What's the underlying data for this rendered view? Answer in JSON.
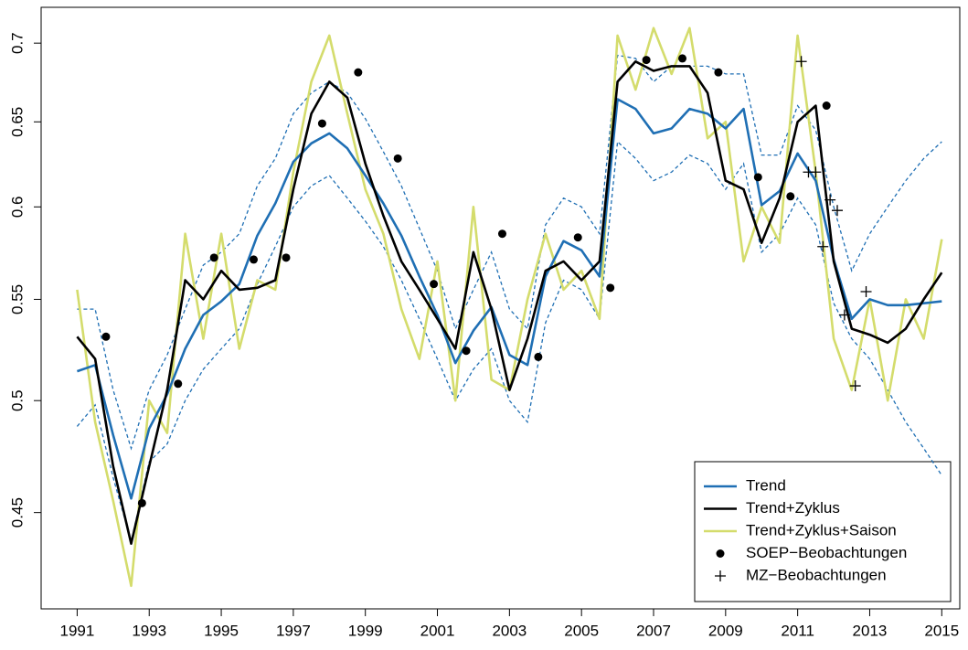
{
  "chart_data": {
    "type": "line",
    "log_scale": true,
    "legend": "bottom-right",
    "xlim": [
      1990.0,
      2015.5
    ],
    "xticks": [
      1991,
      1993,
      1995,
      1997,
      1999,
      2001,
      2003,
      2005,
      2007,
      2009,
      2011,
      2013,
      2015
    ],
    "ylim": [
      0.411,
      0.724
    ],
    "yticks": [
      0.45,
      0.5,
      0.55,
      0.6,
      0.65,
      0.7
    ],
    "x": [
      1991,
      1991.5,
      1992,
      1992.5,
      1993,
      1993.5,
      1994,
      1994.5,
      1995,
      1995.5,
      1996,
      1996.5,
      1997,
      1997.5,
      1998,
      1998.5,
      1999,
      1999.5,
      2000,
      2000.5,
      2001,
      2001.5,
      2002,
      2002.5,
      2003,
      2003.5,
      2004,
      2004.5,
      2005,
      2005.5,
      2006,
      2006.5,
      2007,
      2007.5,
      2008,
      2008.5,
      2009,
      2009.5,
      2010,
      2010.5,
      2011,
      2011.5,
      2012,
      2012.5,
      2013,
      2013.5,
      2014,
      2014.5,
      2015
    ],
    "band": {
      "color": "#1f6fb4",
      "upper": [
        0.545,
        0.545,
        0.505,
        0.478,
        0.505,
        0.522,
        0.545,
        0.568,
        0.575,
        0.585,
        0.612,
        0.628,
        0.655,
        0.668,
        0.675,
        0.668,
        0.652,
        0.632,
        0.612,
        0.588,
        0.565,
        0.535,
        0.555,
        0.575,
        0.545,
        0.535,
        0.59,
        0.605,
        0.6,
        0.585,
        0.692,
        0.69,
        0.675,
        0.685,
        0.685,
        0.685,
        0.68,
        0.68,
        0.63,
        0.63,
        0.66,
        0.645,
        0.6,
        0.565,
        0.585,
        0.6,
        0.615,
        0.628,
        0.638
      ],
      "lower": [
        0.488,
        0.498,
        0.465,
        0.438,
        0.472,
        0.48,
        0.5,
        0.515,
        0.525,
        0.535,
        0.558,
        0.578,
        0.6,
        0.612,
        0.618,
        0.605,
        0.592,
        0.578,
        0.56,
        0.54,
        0.52,
        0.5,
        0.515,
        0.525,
        0.5,
        0.49,
        0.538,
        0.56,
        0.555,
        0.54,
        0.638,
        0.628,
        0.615,
        0.62,
        0.63,
        0.625,
        0.61,
        0.625,
        0.575,
        0.585,
        0.605,
        0.59,
        0.548,
        0.53,
        0.52,
        0.505,
        0.49,
        0.478,
        0.466
      ]
    },
    "series": [
      {
        "name": "Trend",
        "color": "#1f6fb4",
        "marker": "line",
        "values": [
          0.514,
          0.517,
          0.484,
          0.456,
          0.487,
          0.503,
          0.525,
          0.542,
          0.549,
          0.558,
          0.584,
          0.602,
          0.626,
          0.637,
          0.643,
          0.634,
          0.618,
          0.602,
          0.584,
          0.562,
          0.542,
          0.518,
          0.534,
          0.546,
          0.522,
          0.517,
          0.562,
          0.581,
          0.576,
          0.562,
          0.664,
          0.658,
          0.643,
          0.646,
          0.658,
          0.655,
          0.646,
          0.658,
          0.601,
          0.609,
          0.631,
          0.615,
          0.571,
          0.54,
          0.55,
          0.547,
          0.547,
          0.548,
          0.549
        ]
      },
      {
        "name": "Trend+Zyklus",
        "color": "#000000",
        "marker": "line",
        "values": [
          0.531,
          0.52,
          0.47,
          0.437,
          0.47,
          0.505,
          0.56,
          0.55,
          0.565,
          0.555,
          0.556,
          0.56,
          0.61,
          0.655,
          0.675,
          0.665,
          0.625,
          0.595,
          0.57,
          0.555,
          0.54,
          0.525,
          0.575,
          0.545,
          0.505,
          0.53,
          0.565,
          0.57,
          0.56,
          0.57,
          0.675,
          0.688,
          0.682,
          0.685,
          0.685,
          0.668,
          0.615,
          0.61,
          0.58,
          0.605,
          0.65,
          0.66,
          0.57,
          0.535,
          0.532,
          0.528,
          0.535,
          0.55,
          0.564
        ]
      },
      {
        "name": "Trend+Zyklus+Saison",
        "color": "#d4dc6c",
        "marker": "line",
        "values": [
          0.555,
          0.49,
          0.455,
          0.42,
          0.5,
          0.485,
          0.585,
          0.53,
          0.585,
          0.525,
          0.56,
          0.555,
          0.62,
          0.675,
          0.705,
          0.655,
          0.61,
          0.585,
          0.545,
          0.52,
          0.57,
          0.5,
          0.6,
          0.51,
          0.505,
          0.55,
          0.585,
          0.555,
          0.565,
          0.54,
          0.705,
          0.67,
          0.71,
          0.68,
          0.71,
          0.64,
          0.65,
          0.57,
          0.6,
          0.58,
          0.705,
          0.62,
          0.53,
          0.505,
          0.55,
          0.5,
          0.55,
          0.53,
          0.582
        ]
      },
      {
        "name": "SOEP−Beobachtungen",
        "color": "#000000",
        "marker": "dot",
        "x": [
          1991.8,
          1992.8,
          1993.8,
          1994.8,
          1995.9,
          1996.8,
          1997.8,
          1998.8,
          1999.9,
          2000.9,
          2001.8,
          2002.8,
          2003.8,
          2004.9,
          2005.8,
          2006.8,
          2007.8,
          2008.8,
          2009.9,
          2010.8,
          2011.8
        ],
        "values": [
          0.531,
          0.454,
          0.508,
          0.572,
          0.571,
          0.572,
          0.649,
          0.681,
          0.628,
          0.558,
          0.524,
          0.585,
          0.521,
          0.583,
          0.556,
          0.689,
          0.69,
          0.681,
          0.617,
          0.606,
          0.66
        ]
      },
      {
        "name": "MZ−Beobachtungen",
        "color": "#000000",
        "marker": "plus",
        "x": [
          2011.1,
          2011.3,
          2011.5,
          2011.7,
          2011.9,
          2012.1,
          2012.3,
          2012.6,
          2012.9
        ],
        "values": [
          0.688,
          0.62,
          0.62,
          0.578,
          0.604,
          0.598,
          0.542,
          0.507,
          0.554
        ]
      }
    ]
  }
}
